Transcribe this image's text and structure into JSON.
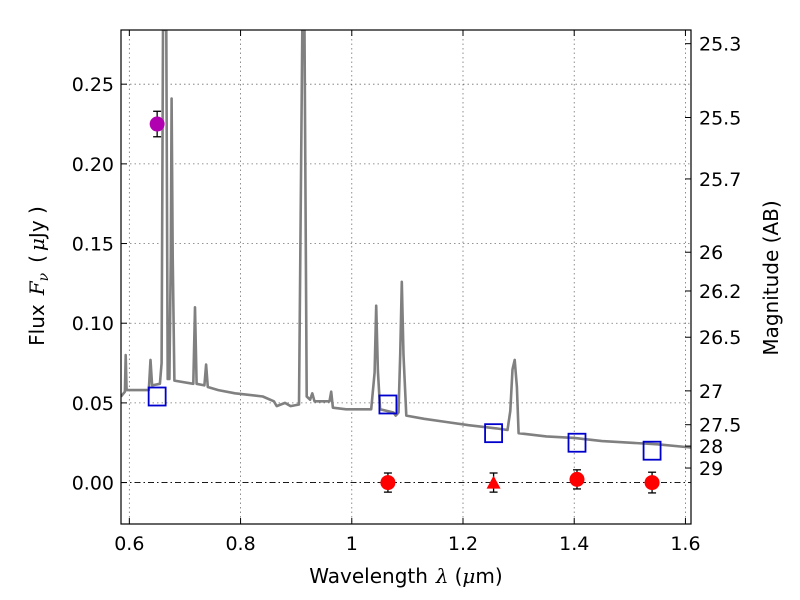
{
  "chart_data": {
    "type": "scatter",
    "title": "",
    "xlabel": {
      "prefix": "Wavelength",
      "lambda": "λ",
      "unit_open": "(",
      "unit_mu": "μ",
      "unit_rest": "m)"
    },
    "ylabel": {
      "prefix": "Flux",
      "var": "F",
      "sub": "ν",
      "unit_open": "(",
      "unit_mu": "μ",
      "unit_rest": "Jy )"
    },
    "ylabel_right": "Magnitude (AB)",
    "xlim": [
      0.585,
      1.61
    ],
    "ylim": [
      -0.026,
      0.284
    ],
    "x_ticks": [
      0.6,
      0.8,
      1.0,
      1.2,
      1.4,
      1.6
    ],
    "x_tick_labels": [
      "0.6",
      "0.8",
      "1",
      "1.2",
      "1.4",
      "1.6"
    ],
    "y_ticks": [
      0.0,
      0.05,
      0.1,
      0.15,
      0.2,
      0.25
    ],
    "y_tick_labels": [
      "0.00",
      "0.05",
      "0.10",
      "0.15",
      "0.20",
      "0.25"
    ],
    "right_ticks": [
      {
        "label": "25.3",
        "mag": 25.3
      },
      {
        "label": "25.5",
        "mag": 25.5
      },
      {
        "label": "25.7",
        "mag": 25.7
      },
      {
        "label": "26",
        "mag": 26.0
      },
      {
        "label": "26.2",
        "mag": 26.2
      },
      {
        "label": "26.5",
        "mag": 26.5
      },
      {
        "label": "27",
        "mag": 27.0
      },
      {
        "label": "27.5",
        "mag": 27.5
      },
      {
        "label": "28",
        "mag": 28.0
      },
      {
        "label": "29",
        "mag": 29.0
      }
    ],
    "grid": true,
    "zero_line": true,
    "colors": {
      "model": "#808080",
      "magenta": "#b000b0",
      "red": "#ff0000",
      "blue": "#0000cc"
    },
    "model_spectrum": [
      [
        0.585,
        0.054
      ],
      [
        0.592,
        0.057
      ],
      [
        0.5935,
        0.08
      ],
      [
        0.595,
        0.058
      ],
      [
        0.61,
        0.058
      ],
      [
        0.635,
        0.058
      ],
      [
        0.638,
        0.077
      ],
      [
        0.641,
        0.061
      ],
      [
        0.655,
        0.062
      ],
      [
        0.658,
        0.075
      ],
      [
        0.6605,
        0.284
      ],
      [
        0.6625,
        0.284
      ],
      [
        0.6645,
        0.284
      ],
      [
        0.6665,
        0.284
      ],
      [
        0.669,
        0.065
      ],
      [
        0.672,
        0.065
      ],
      [
        0.6745,
        0.142
      ],
      [
        0.676,
        0.241
      ],
      [
        0.678,
        0.142
      ],
      [
        0.681,
        0.064
      ],
      [
        0.715,
        0.062
      ],
      [
        0.718,
        0.11
      ],
      [
        0.721,
        0.062
      ],
      [
        0.735,
        0.061
      ],
      [
        0.738,
        0.074
      ],
      [
        0.741,
        0.06
      ],
      [
        0.76,
        0.058
      ],
      [
        0.79,
        0.056
      ],
      [
        0.84,
        0.054
      ],
      [
        0.86,
        0.051
      ],
      [
        0.865,
        0.048
      ],
      [
        0.88,
        0.05
      ],
      [
        0.89,
        0.048
      ],
      [
        0.905,
        0.049
      ],
      [
        0.911,
        0.284
      ],
      [
        0.915,
        0.284
      ],
      [
        0.919,
        0.054
      ],
      [
        0.925,
        0.052
      ],
      [
        0.929,
        0.056
      ],
      [
        0.933,
        0.051
      ],
      [
        0.96,
        0.051
      ],
      [
        0.963,
        0.057
      ],
      [
        0.966,
        0.047
      ],
      [
        0.99,
        0.046
      ],
      [
        1.035,
        0.046
      ],
      [
        1.041,
        0.069
      ],
      [
        1.044,
        0.111
      ],
      [
        1.047,
        0.07
      ],
      [
        1.051,
        0.046
      ],
      [
        1.075,
        0.044
      ],
      [
        1.079,
        0.042
      ],
      [
        1.084,
        0.044
      ],
      [
        1.087,
        0.08
      ],
      [
        1.09,
        0.126
      ],
      [
        1.093,
        0.08
      ],
      [
        1.098,
        0.042
      ],
      [
        1.13,
        0.04
      ],
      [
        1.17,
        0.038
      ],
      [
        1.21,
        0.036
      ],
      [
        1.26,
        0.034
      ],
      [
        1.28,
        0.033
      ],
      [
        1.285,
        0.045
      ],
      [
        1.289,
        0.071
      ],
      [
        1.293,
        0.077
      ],
      [
        1.297,
        0.06
      ],
      [
        1.3,
        0.031
      ],
      [
        1.35,
        0.029
      ],
      [
        1.4,
        0.028
      ],
      [
        1.45,
        0.026
      ],
      [
        1.5,
        0.025
      ],
      [
        1.55,
        0.024
      ],
      [
        1.61,
        0.022
      ]
    ],
    "series": [
      {
        "marker": "circle",
        "color": "magenta",
        "points": [
          {
            "x": 0.65,
            "y": 0.225,
            "err": 0.008
          }
        ]
      },
      {
        "marker": "circle",
        "color": "red",
        "points": [
          {
            "x": 1.065,
            "y": 0.0,
            "err": 0.006
          },
          {
            "x": 1.405,
            "y": 0.002,
            "err": 0.006
          },
          {
            "x": 1.54,
            "y": 0.0,
            "err": 0.0065
          }
        ]
      },
      {
        "marker": "triangle",
        "color": "red",
        "points": [
          {
            "x": 1.255,
            "y": 0.0,
            "err": 0.006
          }
        ]
      },
      {
        "marker": "square-open",
        "color": "blue",
        "points": [
          {
            "x": 0.65,
            "y": 0.054
          },
          {
            "x": 1.065,
            "y": 0.049
          },
          {
            "x": 1.255,
            "y": 0.031
          },
          {
            "x": 1.405,
            "y": 0.025
          },
          {
            "x": 1.54,
            "y": 0.02
          }
        ]
      }
    ]
  }
}
